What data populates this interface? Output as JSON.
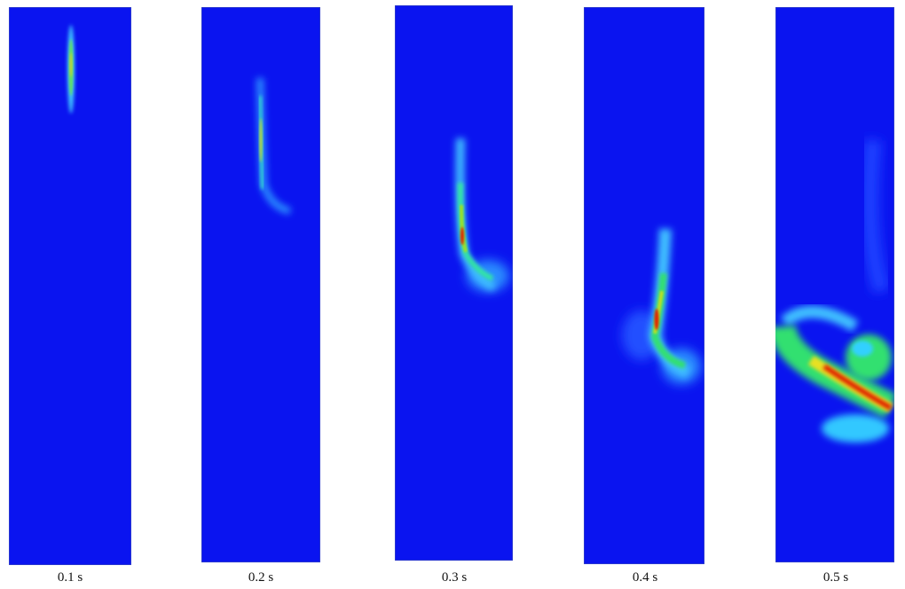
{
  "panels": [
    {
      "label": "0.1 s"
    },
    {
      "label": "0.2 s"
    },
    {
      "label": "0.3 s"
    },
    {
      "label": "0.4 s"
    },
    {
      "label": "0.5 s"
    }
  ],
  "colors": {
    "background_field": "#0a14f0",
    "low": "#00e0ff",
    "mid": "#30e030",
    "high": "#ffe000",
    "peak": "#e01000"
  }
}
